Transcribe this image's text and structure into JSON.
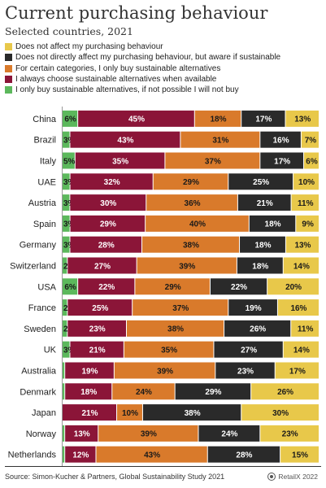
{
  "title": "Current purchasing behaviour",
  "subtitle": "Selected countries, 2021",
  "source": "Source: Simon-Kucher & Partners, Global Sustainability Study 2021",
  "credit": "RetailX 2022",
  "colors": {
    "only_sustainable": "#5cb85c",
    "always_sustainable": "#8b1538",
    "certain_categories": "#d97a2b",
    "aware": "#2a2a2a",
    "not_affect": "#e8c84a"
  },
  "legend": [
    {
      "key": "not_affect",
      "label": "Does not affect my purchasing behaviour"
    },
    {
      "key": "aware",
      "label": "Does not directly affect my purchasing behaviour, but aware if sustainable"
    },
    {
      "key": "certain_categories",
      "label": "For certain categories, I only buy sustainable alternatives"
    },
    {
      "key": "always_sustainable",
      "label": "I always choose sustainable alternatives when available"
    },
    {
      "key": "only_sustainable",
      "label": "I only buy sustainable alternatives, if not possible I will not buy"
    }
  ],
  "chart_data": {
    "type": "bar",
    "orientation": "horizontal",
    "stacked": true,
    "normalized": "100%",
    "title": "Current purchasing behaviour",
    "subtitle": "Selected countries, 2021",
    "legend_position": "top",
    "grid": false,
    "categories": [
      "China",
      "Brazil",
      "Italy",
      "UAE",
      "Austria",
      "Spain",
      "Germany",
      "Switzerland",
      "USA",
      "France",
      "Sweden",
      "UK",
      "Australia",
      "Denmark",
      "Japan",
      "Norway",
      "Netherlands"
    ],
    "series": [
      {
        "key": "only_sustainable",
        "name": "I only buy sustainable alternatives, if not possible I will not buy",
        "values": [
          6,
          3,
          5,
          3,
          3,
          3,
          3,
          2,
          6,
          2,
          2,
          3,
          1,
          1,
          0,
          1,
          1
        ],
        "labels": [
          "6%",
          "3%",
          "5%",
          "3%",
          "3%",
          "3%",
          "3%",
          "2%",
          "6%",
          "2%",
          "2%",
          "3%",
          "",
          "",
          "",
          "",
          ""
        ]
      },
      {
        "key": "always_sustainable",
        "name": "I always choose sustainable alternatives when available",
        "values": [
          45,
          43,
          35,
          32,
          30,
          29,
          28,
          27,
          22,
          25,
          23,
          21,
          19,
          18,
          21,
          13,
          12
        ],
        "labels": [
          "45%",
          "43%",
          "35%",
          "32%",
          "30%",
          "29%",
          "28%",
          "27%",
          "22%",
          "25%",
          "23%",
          "21%",
          "19%",
          "18%",
          "21%",
          "13%",
          "12%"
        ]
      },
      {
        "key": "certain_categories",
        "name": "For certain categories, I only buy sustainable alternatives",
        "values": [
          18,
          31,
          37,
          29,
          36,
          40,
          38,
          39,
          29,
          37,
          38,
          35,
          39,
          24,
          10,
          39,
          43
        ],
        "labels": [
          "18%",
          "31%",
          "37%",
          "29%",
          "36%",
          "40%",
          "38%",
          "39%",
          "29%",
          "37%",
          "38%",
          "35%",
          "39%",
          "24%",
          "10%",
          "39%",
          "43%"
        ]
      },
      {
        "key": "aware",
        "name": "Does not directly affect my purchasing behaviour, but aware if sustainable",
        "values": [
          17,
          16,
          17,
          25,
          21,
          18,
          18,
          18,
          22,
          19,
          26,
          27,
          23,
          29,
          38,
          24,
          28
        ],
        "labels": [
          "17%",
          "16%",
          "17%",
          "25%",
          "21%",
          "18%",
          "18%",
          "18%",
          "22%",
          "19%",
          "26%",
          "27%",
          "23%",
          "29%",
          "38%",
          "24%",
          "28%"
        ]
      },
      {
        "key": "not_affect",
        "name": "Does not affect my purchasing behaviour",
        "values": [
          13,
          7,
          6,
          10,
          11,
          9,
          13,
          14,
          20,
          16,
          11,
          14,
          17,
          26,
          30,
          23,
          15
        ],
        "labels": [
          "13%",
          "7%",
          "6%",
          "10%",
          "11%",
          "9%",
          "13%",
          "14%",
          "20%",
          "16%",
          "11%",
          "14%",
          "17%",
          "26%",
          "30%",
          "23%",
          "15%"
        ]
      }
    ]
  }
}
